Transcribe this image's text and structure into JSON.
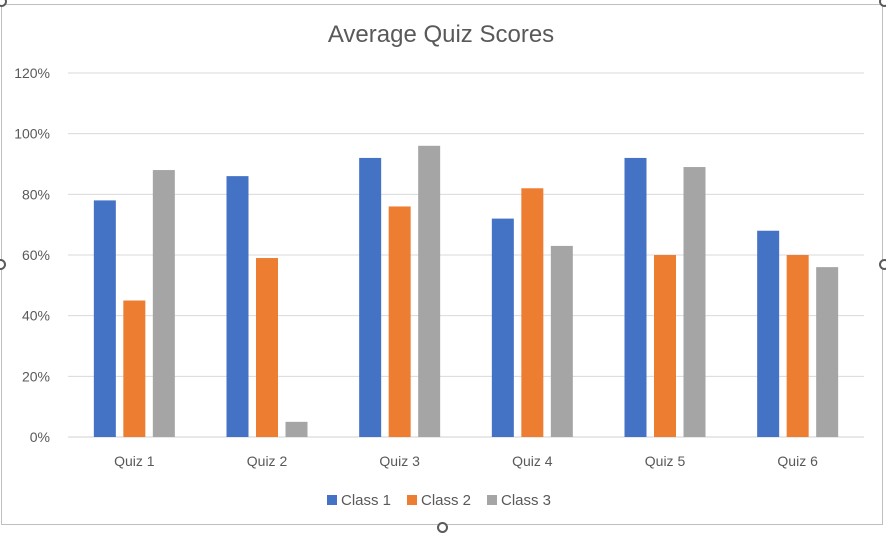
{
  "chart_data": {
    "type": "bar",
    "title": "Average Quiz Scores",
    "xlabel": "",
    "ylabel": "",
    "categories": [
      "Quiz 1",
      "Quiz 2",
      "Quiz 3",
      "Quiz 4",
      "Quiz 5",
      "Quiz 6"
    ],
    "series": [
      {
        "name": "Class 1",
        "color": "#4472c4",
        "values": [
          78,
          86,
          92,
          72,
          92,
          68
        ]
      },
      {
        "name": "Class 2",
        "color": "#ed7d31",
        "values": [
          45,
          59,
          76,
          82,
          60,
          60
        ]
      },
      {
        "name": "Class 3",
        "color": "#a5a5a5",
        "values": [
          88,
          5,
          96,
          63,
          89,
          56
        ]
      }
    ],
    "ylim": [
      0,
      120
    ],
    "yticks": [
      "0%",
      "20%",
      "40%",
      "60%",
      "80%",
      "100%",
      "120%"
    ],
    "grid": true,
    "legend_position": "bottom"
  }
}
